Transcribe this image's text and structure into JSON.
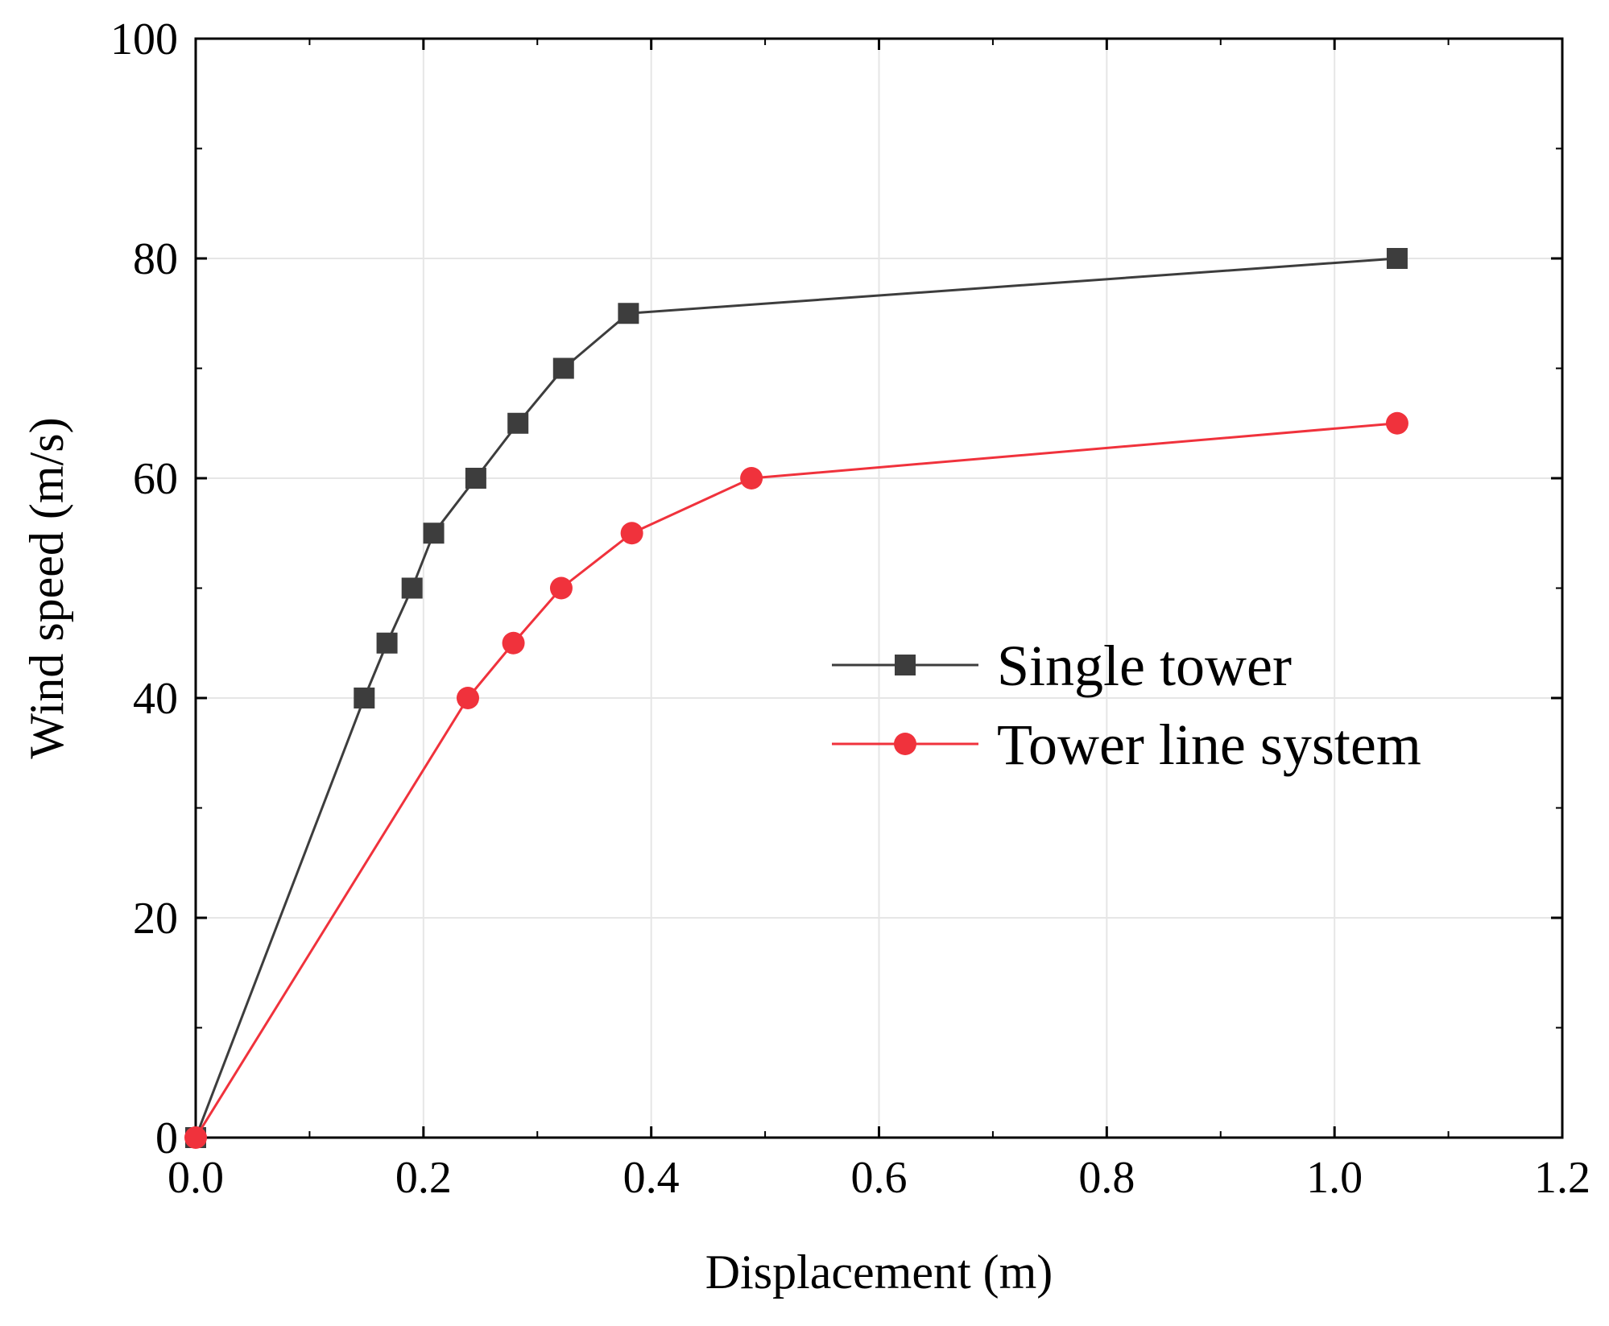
{
  "chart_data": {
    "type": "line",
    "title": "",
    "xlabel": "Displacement (m)",
    "ylabel": "Wind speed (m/s)",
    "xlim": [
      0.0,
      1.2
    ],
    "ylim": [
      0,
      100
    ],
    "xticks": [
      "0.0",
      "0.2",
      "0.4",
      "0.6",
      "0.8",
      "1.0",
      "1.2"
    ],
    "yticks": [
      "0",
      "20",
      "40",
      "60",
      "80",
      "100"
    ],
    "grid": true,
    "legend_position": "center-right",
    "series": [
      {
        "name": "Single tower",
        "color": "#3d3d3d",
        "marker": "square",
        "x": [
          0.0,
          0.148,
          0.168,
          0.19,
          0.209,
          0.246,
          0.283,
          0.323,
          0.38,
          1.055
        ],
        "y": [
          0,
          40,
          45,
          50,
          55,
          60,
          65,
          70,
          75,
          80
        ]
      },
      {
        "name": "Tower line system",
        "color": "#f0323c",
        "marker": "circle",
        "x": [
          0.0,
          0.239,
          0.279,
          0.321,
          0.383,
          0.488,
          1.055
        ],
        "y": [
          0,
          40,
          45,
          50,
          55,
          60,
          65
        ]
      }
    ]
  }
}
